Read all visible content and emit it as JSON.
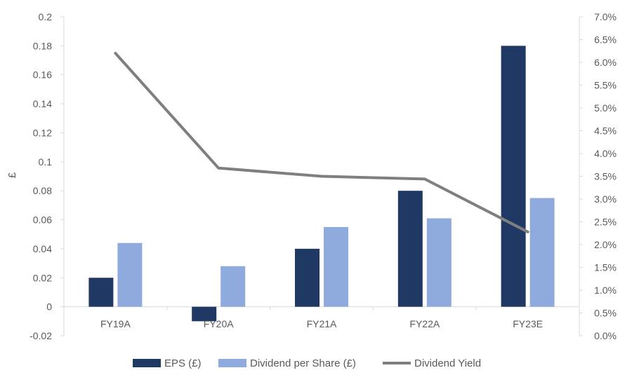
{
  "chart_data": {
    "type": "bar",
    "categories": [
      "FY19A",
      "FY20A",
      "FY21A",
      "FY22A",
      "FY23E"
    ],
    "series": [
      {
        "name": "EPS (£)",
        "kind": "bar",
        "axis": "left",
        "color": "#1f3864",
        "values": [
          0.02,
          -0.01,
          0.04,
          0.08,
          0.18
        ]
      },
      {
        "name": "Dividend per Share (£)",
        "kind": "bar",
        "axis": "left",
        "color": "#8faadc",
        "values": [
          0.044,
          0.028,
          0.055,
          0.061,
          0.075
        ]
      },
      {
        "name": "Dividend Yield",
        "kind": "line",
        "axis": "right",
        "color": "#7f7f7f",
        "values": [
          0.062,
          0.0368,
          0.035,
          0.0344,
          0.0228
        ]
      }
    ],
    "ylabel": "£",
    "ylim": [
      -0.02,
      0.2
    ],
    "yticks": [
      "-0.02",
      "0",
      "0.02",
      "0.04",
      "0.06",
      "0.08",
      "0.1",
      "0.12",
      "0.14",
      "0.16",
      "0.18",
      "0.2"
    ],
    "y2lim": [
      0,
      0.07
    ],
    "y2ticks": [
      "0.0%",
      "0.5%",
      "1.0%",
      "1.5%",
      "2.0%",
      "2.5%",
      "3.0%",
      "3.5%",
      "4.0%",
      "4.5%",
      "5.0%",
      "5.5%",
      "6.0%",
      "6.5%",
      "7.0%"
    ],
    "grid": false,
    "legend_position": "bottom"
  }
}
